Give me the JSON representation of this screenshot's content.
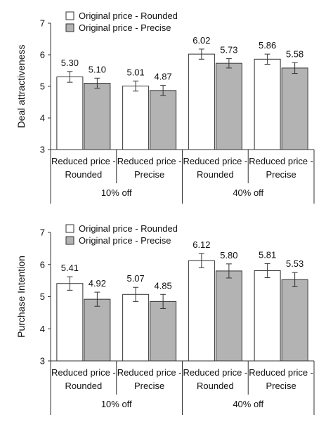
{
  "chart_data": [
    {
      "type": "bar",
      "ylabel": "Deal attractiveness",
      "ylim": [
        3,
        7
      ],
      "yticks": [
        3,
        4,
        5,
        6,
        7
      ],
      "legend_position": "top-left",
      "groups": [
        {
          "label": "10% off",
          "categories": [
            "Reduced price - Rounded",
            "Reduced price - Precise"
          ]
        },
        {
          "label": "40% off",
          "categories": [
            "Reduced price - Rounded",
            "Reduced price - Precise"
          ]
        }
      ],
      "category_lines": [
        [
          "Reduced price -",
          "Rounded"
        ],
        [
          "Reduced price -",
          "Precise"
        ]
      ],
      "series": [
        {
          "name": "Original price - Rounded",
          "color": "#ffffff",
          "values": [
            5.3,
            5.01,
            6.02,
            5.86
          ],
          "labels": [
            "5.30",
            "5.01",
            "6.02",
            "5.86"
          ],
          "errors": [
            0.17,
            0.16,
            0.16,
            0.16
          ]
        },
        {
          "name": "Original price - Precise",
          "color": "#b3b3b3",
          "values": [
            5.1,
            4.87,
            5.73,
            5.58
          ],
          "labels": [
            "5.10",
            "4.87",
            "5.73",
            "5.58"
          ],
          "errors": [
            0.16,
            0.16,
            0.15,
            0.17
          ]
        }
      ]
    },
    {
      "type": "bar",
      "ylabel": "Purchase Intention",
      "ylim": [
        3,
        7
      ],
      "yticks": [
        3,
        4,
        5,
        6,
        7
      ],
      "legend_position": "top-left",
      "groups": [
        {
          "label": "10% off",
          "categories": [
            "Reduced price - Rounded",
            "Reduced price - Precise"
          ]
        },
        {
          "label": "40% off",
          "categories": [
            "Reduced price - Rounded",
            "Reduced price - Precise"
          ]
        }
      ],
      "category_lines": [
        [
          "Reduced price -",
          "Rounded"
        ],
        [
          "Reduced price -",
          "Precise"
        ]
      ],
      "series": [
        {
          "name": "Original price - Rounded",
          "color": "#ffffff",
          "values": [
            5.41,
            5.07,
            6.12,
            5.81
          ],
          "labels": [
            "5.41",
            "5.07",
            "6.12",
            "5.81"
          ],
          "errors": [
            0.21,
            0.22,
            0.22,
            0.22
          ]
        },
        {
          "name": "Original price - Precise",
          "color": "#b3b3b3",
          "values": [
            4.92,
            4.85,
            5.8,
            5.53
          ],
          "labels": [
            "4.92",
            "4.85",
            "5.80",
            "5.53"
          ],
          "errors": [
            0.22,
            0.22,
            0.22,
            0.22
          ]
        }
      ]
    }
  ]
}
